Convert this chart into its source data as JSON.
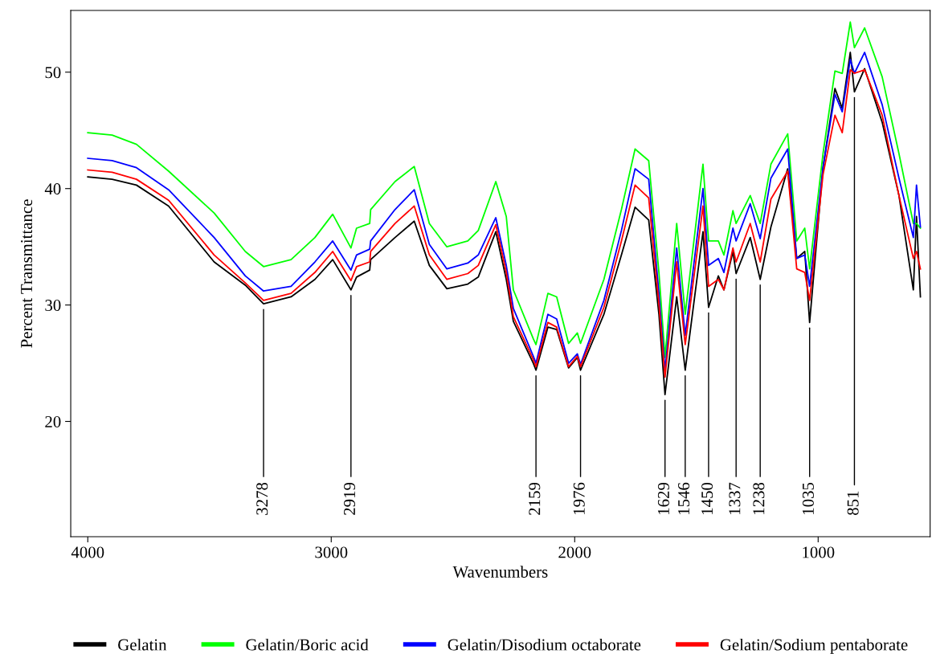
{
  "chart_data": {
    "type": "line",
    "xlabel": "Wavenumbers",
    "ylabel": "Percent Transmittance",
    "x": [
      4000,
      3900,
      3800,
      3668,
      3481,
      3353,
      3278,
      3165,
      3067,
      2994,
      2919,
      2896,
      2842,
      2838,
      2738,
      2659,
      2597,
      2525,
      2439,
      2396,
      2324,
      2281,
      2252,
      2170,
      2159,
      2110,
      2074,
      2025,
      1989,
      1976,
      1880,
      1808,
      1752,
      1696,
      1654,
      1629,
      1581,
      1546,
      1473,
      1450,
      1410,
      1387,
      1350,
      1337,
      1279,
      1238,
      1194,
      1125,
      1088,
      1055,
      1035,
      980,
      931,
      901,
      868,
      851,
      809,
      737,
      668,
      609,
      596,
      580
    ],
    "series": [
      {
        "name": "Gelatin",
        "color": "#000000",
        "values": [
          41.0,
          40.8,
          40.3,
          38.5,
          33.7,
          31.7,
          30.1,
          30.7,
          32.2,
          33.9,
          31.3,
          32.4,
          33.0,
          33.9,
          35.8,
          37.2,
          33.4,
          31.4,
          31.8,
          32.4,
          36.3,
          32.2,
          28.6,
          25.0,
          24.4,
          28.1,
          27.9,
          24.6,
          25.5,
          24.4,
          29.2,
          34.3,
          38.4,
          37.3,
          29.2,
          22.3,
          30.7,
          24.4,
          36.3,
          29.8,
          32.5,
          31.3,
          34.6,
          32.7,
          35.8,
          32.2,
          36.7,
          41.7,
          34.0,
          34.6,
          28.5,
          41.8,
          48.6,
          46.9,
          51.7,
          48.3,
          50.3,
          45.7,
          39.4,
          31.3,
          37.6,
          30.7
        ]
      },
      {
        "name": "Gelatin/Boric acid",
        "color": "#00ff00",
        "values": [
          44.8,
          44.6,
          43.8,
          41.5,
          37.9,
          34.6,
          33.3,
          33.9,
          35.8,
          37.8,
          34.9,
          36.6,
          37.0,
          38.2,
          40.6,
          41.9,
          37.0,
          35.0,
          35.5,
          36.4,
          40.6,
          37.6,
          31.3,
          27.1,
          26.6,
          31.0,
          30.7,
          26.7,
          27.6,
          26.7,
          32.2,
          38.2,
          43.4,
          42.4,
          32.8,
          25.5,
          37.0,
          29.2,
          42.1,
          35.5,
          35.5,
          34.3,
          38.1,
          37.0,
          39.4,
          37.0,
          42.1,
          44.7,
          35.5,
          36.6,
          33.1,
          43.0,
          50.1,
          49.9,
          54.3,
          52.1,
          53.8,
          49.6,
          43.0,
          37.0,
          37.0,
          36.6
        ]
      },
      {
        "name": "Gelatin/Disodium octaborate",
        "color": "#0000ff",
        "values": [
          42.6,
          42.4,
          41.8,
          39.9,
          35.8,
          32.5,
          31.2,
          31.6,
          33.7,
          35.5,
          33.0,
          34.3,
          34.8,
          35.5,
          38.2,
          39.9,
          35.2,
          33.1,
          33.6,
          34.3,
          37.5,
          33.4,
          29.7,
          25.6,
          25.0,
          29.2,
          28.8,
          25.0,
          25.8,
          24.9,
          30.4,
          36.4,
          41.7,
          40.8,
          31.0,
          24.4,
          34.9,
          27.4,
          40.0,
          33.4,
          34.0,
          32.8,
          36.6,
          35.5,
          38.7,
          35.7,
          40.9,
          43.4,
          34.0,
          34.3,
          31.6,
          41.8,
          48.1,
          46.6,
          51.1,
          49.9,
          51.7,
          47.2,
          40.9,
          35.8,
          40.3,
          36.7
        ]
      },
      {
        "name": "Gelatin/Sodium pentaborate",
        "color": "#ff0000",
        "values": [
          41.6,
          41.4,
          40.8,
          39.0,
          34.3,
          31.9,
          30.4,
          31.0,
          32.8,
          34.6,
          32.1,
          33.3,
          33.7,
          34.6,
          37.0,
          38.5,
          34.3,
          32.2,
          32.7,
          33.4,
          36.9,
          32.8,
          29.0,
          25.3,
          24.7,
          28.5,
          28.1,
          24.7,
          25.6,
          24.7,
          29.8,
          35.5,
          40.3,
          39.2,
          30.1,
          23.8,
          33.7,
          26.6,
          38.5,
          31.6,
          32.2,
          31.3,
          34.9,
          33.7,
          37.0,
          33.7,
          39.1,
          41.5,
          33.1,
          32.8,
          30.4,
          41.2,
          46.3,
          44.8,
          50.2,
          49.9,
          50.2,
          46.3,
          39.4,
          34.0,
          34.6,
          33.1
        ]
      }
    ],
    "xlim": [
      4070,
      540
    ],
    "ylim": [
      10.1,
      55.3
    ],
    "xticks": [
      4000,
      3000,
      2000,
      1000
    ],
    "yticks": [
      20,
      30,
      40,
      50
    ],
    "annotations": [
      {
        "text": "3278",
        "x": 3278,
        "y": 30.1
      },
      {
        "text": "2919",
        "x": 2919,
        "y": 31.3
      },
      {
        "text": "2159",
        "x": 2159,
        "y": 24.4
      },
      {
        "text": "1976",
        "x": 1976,
        "y": 24.4
      },
      {
        "text": "1629",
        "x": 1629,
        "y": 22.3
      },
      {
        "text": "1546",
        "x": 1546,
        "y": 24.4
      },
      {
        "text": "1450",
        "x": 1450,
        "y": 29.8
      },
      {
        "text": "1337",
        "x": 1337,
        "y": 32.7
      },
      {
        "text": "1238",
        "x": 1238,
        "y": 32.2
      },
      {
        "text": "1035",
        "x": 1035,
        "y": 28.5
      },
      {
        "text": "851",
        "x": 851,
        "y": 48.3
      }
    ],
    "grid": false,
    "legend": "bottom",
    "line_style": "solid",
    "marker": "none"
  }
}
